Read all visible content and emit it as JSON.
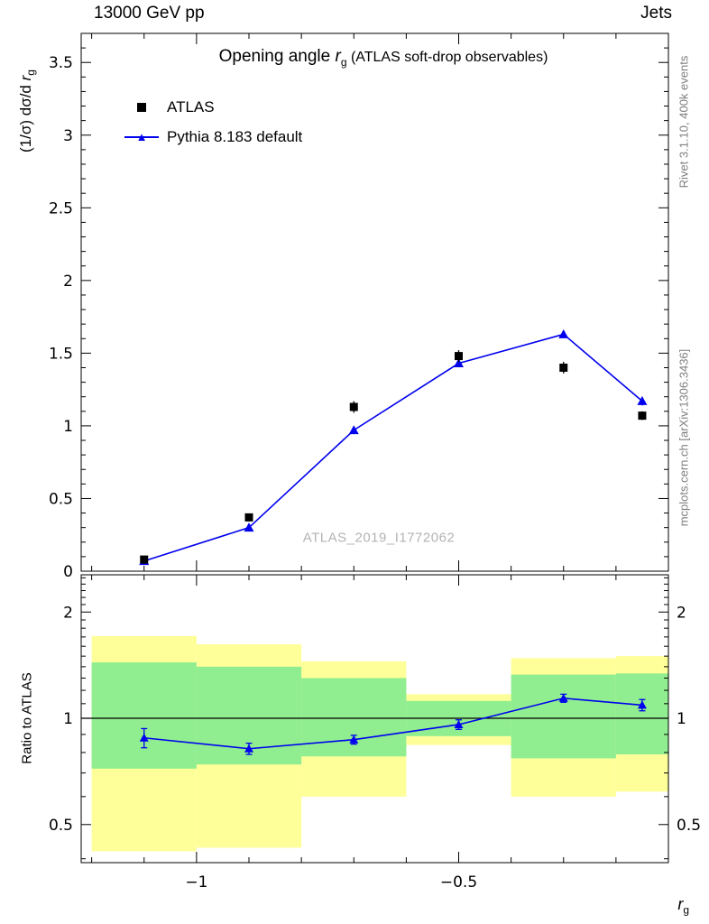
{
  "header": {
    "left": "13000 GeV pp",
    "right": "Jets"
  },
  "title": {
    "text": "Opening angle ",
    "symbol": "r",
    "sub": "g",
    "post": " (ATLAS soft-drop observables)"
  },
  "legend": [
    {
      "label": "ATLAS",
      "marker": "square",
      "color": "#000000"
    },
    {
      "label": "Pythia 8.183 default",
      "marker": "triangle-line",
      "color": "#0000ee"
    }
  ],
  "watermark": "ATLAS_2019_I1772062",
  "axes": {
    "main_ylabel": {
      "text": "(1/σ) dσ/d ",
      "symbol": "r",
      "sub": "g"
    },
    "ratio_ylabel": "Ratio to ATLAS",
    "xlabel": {
      "symbol": "r",
      "sub": "g"
    }
  },
  "side_notes": {
    "top_right": "Rivet 3.1.10,  400k events",
    "bottom_right": "mcplots.cern.ch [arXiv:1306.3436]"
  },
  "colors": {
    "pythia_blue": "#0000ee",
    "atlas_black": "#000000",
    "band_yellow": "#ffff99",
    "band_green": "#90ee90",
    "gray_text": "#7f7f7f"
  },
  "chart_data": {
    "type": "line",
    "title": "Opening angle r_g (ATLAS soft-drop observables)",
    "xlabel": "r_g",
    "xlim": [
      -1.22,
      -0.1
    ],
    "xticks": [
      -1,
      -0.5
    ],
    "xtick_labels": [
      "−1",
      "−0.5"
    ],
    "panels": [
      {
        "name": "main",
        "ylabel": "(1/σ) dσ/d r_g",
        "ylim": [
          0,
          3.7
        ],
        "yticks": [
          0,
          0.5,
          1,
          1.5,
          2,
          2.5,
          3,
          3.5
        ],
        "ytick_labels": [
          "0",
          "0.5",
          "1",
          "1.5",
          "2",
          "2.5",
          "3",
          "3.5"
        ],
        "x": [
          -1.1,
          -0.9,
          -0.7,
          -0.5,
          -0.3,
          -0.15
        ],
        "series": [
          {
            "name": "ATLAS",
            "marker": "square",
            "color": "#000000",
            "line": false,
            "values": [
              0.08,
              0.37,
              1.13,
              1.48,
              1.4,
              1.07
            ],
            "errors": [
              0.02,
              0.02,
              0.04,
              0.04,
              0.04,
              0.03
            ]
          },
          {
            "name": "Pythia 8.183 default",
            "marker": "triangle",
            "color": "#0000ee",
            "line": true,
            "values": [
              0.07,
              0.3,
              0.97,
              1.43,
              1.63,
              1.17
            ],
            "errors": [
              0.01,
              0.01,
              0.02,
              0.02,
              0.02,
              0.03
            ]
          }
        ]
      },
      {
        "name": "ratio",
        "ylabel": "Ratio to ATLAS",
        "yscale": "log",
        "ylim": [
          0.39,
          2.55
        ],
        "yticks": [
          0.5,
          1,
          2
        ],
        "ytick_labels": [
          "0.5",
          "1",
          "2"
        ],
        "bin_edges": [
          -1.2,
          -1.0,
          -0.8,
          -0.6,
          -0.4,
          -0.2,
          -0.1
        ],
        "bands": {
          "yellow": [
            [
              0.42,
              1.71
            ],
            [
              0.43,
              1.62
            ],
            [
              0.6,
              1.45
            ],
            [
              0.84,
              1.17
            ],
            [
              0.6,
              1.48
            ],
            [
              0.62,
              1.5
            ]
          ],
          "green": [
            [
              0.72,
              1.44
            ],
            [
              0.74,
              1.4
            ],
            [
              0.78,
              1.3
            ],
            [
              0.89,
              1.12
            ],
            [
              0.77,
              1.33
            ],
            [
              0.79,
              1.34
            ]
          ]
        },
        "ratio": {
          "x": [
            -1.1,
            -0.9,
            -0.7,
            -0.5,
            -0.3,
            -0.15
          ],
          "values": [
            0.88,
            0.82,
            0.87,
            0.96,
            1.14,
            1.09
          ],
          "errors": [
            0.055,
            0.03,
            0.025,
            0.03,
            0.03,
            0.04
          ]
        }
      }
    ]
  }
}
